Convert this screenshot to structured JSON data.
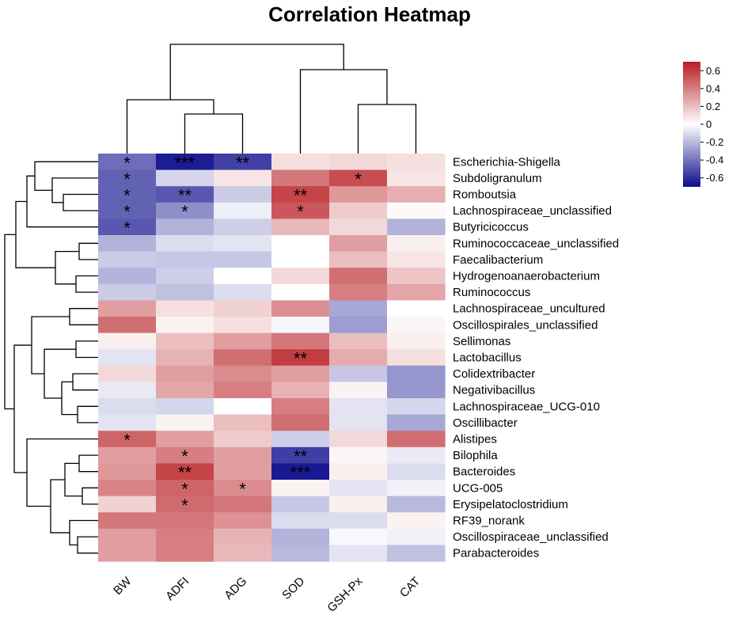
{
  "chart_data": {
    "type": "heatmap",
    "title": "Correlation Heatmap",
    "columns": [
      "BW",
      "ADFI",
      "ADG",
      "SOD",
      "GSH-Px",
      "CAT"
    ],
    "rows": [
      "Escherichia-Shigella",
      "Subdoligranulum",
      "Romboutsia",
      "Lachnospiraceae_unclassified",
      "Butyricicoccus",
      "Ruminococcaceae_unclassified",
      "Faecalibacterium",
      "Hydrogenoanaerobacterium",
      "Ruminococcus",
      "Lachnospiraceae_uncultured",
      "Oscillospirales_unclassified",
      "Sellimonas",
      "Lactobacillus",
      "Colidextribacter",
      "Negativibacillus",
      "Lachnospiraceae_UCG-010",
      "Oscillibacter",
      "Alistipes",
      "Bilophila",
      "Bacteroides",
      "UCG-005",
      "Erysipelatoclostridium",
      "RF39_norank",
      "Oscillospiraceae_unclassified",
      "Parabacteroides"
    ],
    "values": [
      [
        -0.42,
        -0.65,
        -0.55,
        0.1,
        0.12,
        0.1
      ],
      [
        -0.45,
        -0.12,
        0.08,
        0.42,
        0.55,
        0.08
      ],
      [
        -0.45,
        -0.48,
        -0.15,
        0.58,
        0.32,
        0.25
      ],
      [
        -0.45,
        -0.32,
        -0.05,
        0.52,
        0.16,
        0.02
      ],
      [
        -0.48,
        -0.22,
        -0.14,
        0.22,
        0.12,
        -0.22
      ],
      [
        -0.22,
        -0.1,
        -0.08,
        0.0,
        0.3,
        0.05
      ],
      [
        -0.15,
        -0.16,
        -0.16,
        0.0,
        0.2,
        0.08
      ],
      [
        -0.22,
        -0.14,
        0.0,
        0.12,
        0.45,
        0.18
      ],
      [
        -0.15,
        -0.18,
        -0.1,
        0.0,
        0.4,
        0.28
      ],
      [
        0.3,
        0.1,
        0.14,
        0.35,
        -0.25,
        0.0
      ],
      [
        0.45,
        0.04,
        0.1,
        -0.03,
        -0.28,
        0.03
      ],
      [
        0.05,
        0.2,
        0.3,
        0.42,
        0.2,
        0.05
      ],
      [
        -0.08,
        0.24,
        0.45,
        0.6,
        0.26,
        0.1
      ],
      [
        0.12,
        0.3,
        0.36,
        0.3,
        -0.16,
        -0.3
      ],
      [
        -0.06,
        0.28,
        0.4,
        0.24,
        0.04,
        -0.3
      ],
      [
        -0.1,
        -0.12,
        0.0,
        0.4,
        -0.08,
        -0.12
      ],
      [
        -0.08,
        0.04,
        0.2,
        0.45,
        -0.08,
        -0.25
      ],
      [
        0.48,
        0.3,
        0.16,
        -0.14,
        0.12,
        0.45
      ],
      [
        0.3,
        0.4,
        0.3,
        -0.55,
        0.03,
        -0.06
      ],
      [
        0.32,
        0.58,
        0.3,
        -0.66,
        0.05,
        -0.1
      ],
      [
        0.38,
        0.48,
        0.36,
        0.04,
        -0.08,
        -0.04
      ],
      [
        0.14,
        0.46,
        0.42,
        -0.16,
        0.05,
        -0.2
      ],
      [
        0.42,
        0.42,
        0.34,
        -0.1,
        -0.1,
        0.04
      ],
      [
        0.3,
        0.4,
        0.24,
        -0.22,
        -0.02,
        -0.04
      ],
      [
        0.3,
        0.4,
        0.22,
        -0.2,
        -0.08,
        -0.18
      ]
    ],
    "significance": [
      [
        "*",
        "***",
        "**",
        "",
        "",
        ""
      ],
      [
        "*",
        "",
        "",
        "",
        "*",
        ""
      ],
      [
        "*",
        "**",
        "",
        "**",
        "",
        ""
      ],
      [
        "*",
        "*",
        "",
        "*",
        "",
        ""
      ],
      [
        "*",
        "",
        "",
        "",
        "",
        ""
      ],
      [
        "",
        "",
        "",
        "",
        "",
        ""
      ],
      [
        "",
        "",
        "",
        "",
        "",
        ""
      ],
      [
        "",
        "",
        "",
        "",
        "",
        ""
      ],
      [
        "",
        "",
        "",
        "",
        "",
        ""
      ],
      [
        "",
        "",
        "",
        "",
        "",
        ""
      ],
      [
        "",
        "",
        "",
        "",
        "",
        ""
      ],
      [
        "",
        "",
        "",
        "",
        "",
        ""
      ],
      [
        "",
        "",
        "",
        "**",
        "",
        ""
      ],
      [
        "",
        "",
        "",
        "",
        "",
        ""
      ],
      [
        "",
        "",
        "",
        "",
        "",
        ""
      ],
      [
        "",
        "",
        "",
        "",
        "",
        ""
      ],
      [
        "",
        "",
        "",
        "",
        "",
        ""
      ],
      [
        "*",
        "",
        "",
        "",
        "",
        ""
      ],
      [
        "",
        "*",
        "",
        "**",
        "",
        ""
      ],
      [
        "",
        "**",
        "",
        "***",
        "",
        ""
      ],
      [
        "",
        "*",
        "*",
        "",
        "",
        ""
      ],
      [
        "",
        "*",
        "",
        "",
        "",
        ""
      ],
      [
        "",
        "",
        "",
        "",
        "",
        ""
      ],
      [
        "",
        "",
        "",
        "",
        "",
        ""
      ],
      [
        "",
        "",
        "",
        "",
        "",
        ""
      ]
    ],
    "legend": {
      "min": -0.7,
      "max": 0.7,
      "ticks": [
        0.6,
        0.4,
        0.2,
        0,
        -0.2,
        -0.4,
        -0.6
      ],
      "tick_labels": [
        "0.6",
        "0.4",
        "0.2",
        "0",
        "-0.2",
        "-0.4",
        "-0.6"
      ],
      "placement": "top-right"
    },
    "colors": {
      "low": "#0b0b8c",
      "mid": "#ffffff",
      "high": "#b81d22"
    }
  }
}
